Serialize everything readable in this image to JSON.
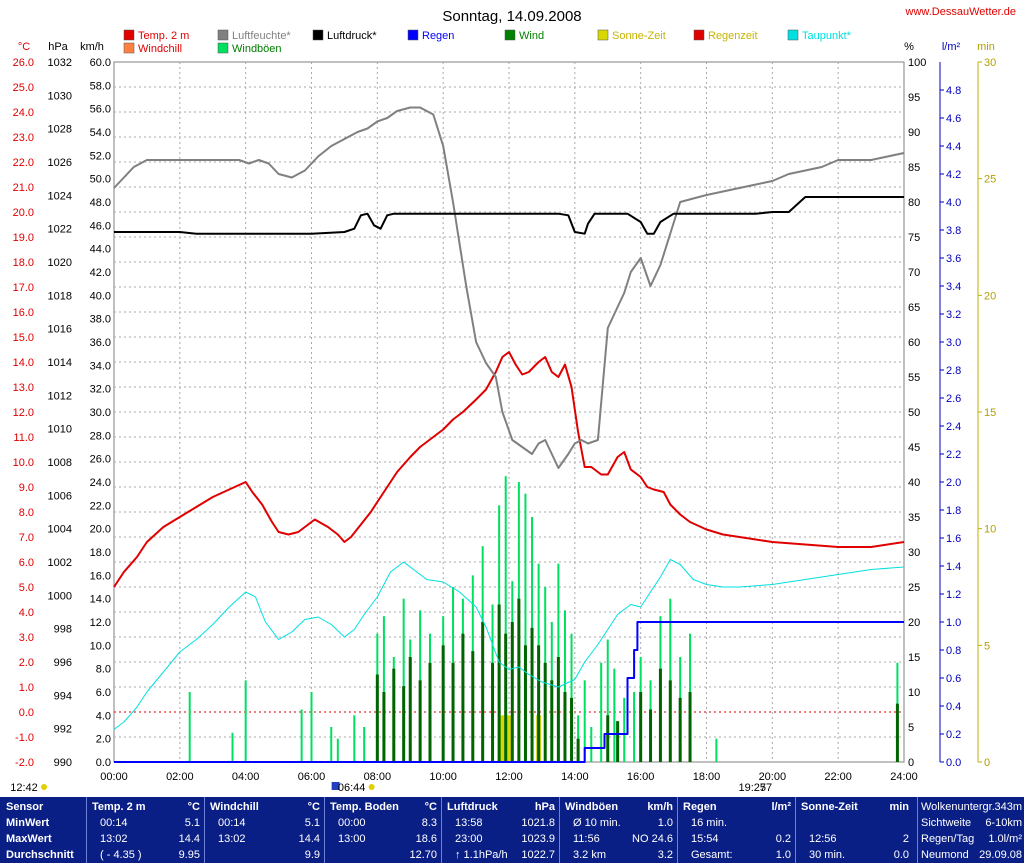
{
  "site": "www.DessauWetter.de",
  "chart_data": {
    "type": "line",
    "title": "Sonntag, 14.09.2008",
    "axes": {
      "temp": {
        "unit": "°C",
        "min": -2.0,
        "max": 26.0,
        "ticks": [
          "-2.0",
          "-1.0",
          "0.0",
          "1.0",
          "2.0",
          "3.0",
          "4.0",
          "5.0",
          "6.0",
          "7.0",
          "8.0",
          "9.0",
          "10.0",
          "11.0",
          "12.0",
          "13.0",
          "14.0",
          "15.0",
          "16.0",
          "17.0",
          "18.0",
          "19.0",
          "20.0",
          "21.0",
          "22.0",
          "23.0",
          "24.0",
          "25.0",
          "26.0"
        ]
      },
      "pressure": {
        "unit": "hPa",
        "min": 990,
        "max": 1032,
        "ticks": [
          "990",
          "992",
          "994",
          "996",
          "998",
          "1000",
          "1002",
          "1004",
          "1006",
          "1008",
          "1010",
          "1012",
          "1014",
          "1016",
          "1018",
          "1020",
          "1022",
          "1024",
          "1026",
          "1028",
          "1030",
          "1032"
        ]
      },
      "wind": {
        "unit": "km/h",
        "min": 0.0,
        "max": 60.0,
        "ticks": [
          "0.0",
          "2.0",
          "4.0",
          "6.0",
          "8.0",
          "10.0",
          "12.0",
          "14.0",
          "16.0",
          "18.0",
          "20.0",
          "22.0",
          "24.0",
          "26.0",
          "28.0",
          "30.0",
          "32.0",
          "34.0",
          "36.0",
          "38.0",
          "40.0",
          "42.0",
          "44.0",
          "46.0",
          "48.0",
          "50.0",
          "52.0",
          "54.0",
          "56.0",
          "58.0",
          "60.0"
        ]
      },
      "humidity": {
        "unit": "%",
        "min": 0,
        "max": 100,
        "ticks": [
          "0",
          "5",
          "10",
          "15",
          "20",
          "25",
          "30",
          "35",
          "40",
          "45",
          "50",
          "55",
          "60",
          "65",
          "70",
          "75",
          "80",
          "85",
          "90",
          "95",
          "100"
        ]
      },
      "rain": {
        "unit": "l/m²",
        "min": 0.0,
        "max": 5.0,
        "ticks": [
          "0.0",
          "0.2",
          "0.4",
          "0.6",
          "0.8",
          "1.0",
          "1.2",
          "1.4",
          "1.6",
          "1.8",
          "2.0",
          "2.2",
          "2.4",
          "2.6",
          "2.8",
          "3.0",
          "3.2",
          "3.4",
          "3.6",
          "3.8",
          "4.0",
          "4.2",
          "4.4",
          "4.6",
          "4.8"
        ]
      },
      "minutes": {
        "unit": "min",
        "min": 0,
        "max": 30,
        "ticks": [
          "0",
          "5",
          "10",
          "15",
          "20",
          "25",
          "30"
        ]
      },
      "x": {
        "min": 0,
        "max": 24,
        "ticks": [
          "00:00",
          "02:00",
          "04:00",
          "06:00",
          "08:00",
          "10:00",
          "12:00",
          "14:00",
          "16:00",
          "18:00",
          "20:00",
          "22:00",
          "24:00"
        ]
      }
    },
    "legend": [
      {
        "name": "Temp. 2 m",
        "color": "#e00000"
      },
      {
        "name": "Luftfeuchte*",
        "color": "#808080"
      },
      {
        "name": "Luftdruck*",
        "color": "#000000"
      },
      {
        "name": "Regen",
        "color": "#0000ff"
      },
      {
        "name": "Wind",
        "color": "#008000"
      },
      {
        "name": "Sonne-Zeit",
        "color": "#d8d800"
      },
      {
        "name": "Regenzeit",
        "color": "#e00000"
      },
      {
        "name": "Taupunkt*",
        "color": "#00e0e0"
      },
      {
        "name": "Windchill",
        "color": "#ff8040"
      },
      {
        "name": "Windböen",
        "color": "#00e060"
      }
    ],
    "series": [
      {
        "name": "Temp. 2 m",
        "axis": "temp",
        "color": "#e00000",
        "x": [
          0,
          0.3,
          0.7,
          1.0,
          1.5,
          2.0,
          2.5,
          3.0,
          3.5,
          4.0,
          4.2,
          4.5,
          4.8,
          5.0,
          5.3,
          5.6,
          5.9,
          6.1,
          6.5,
          6.8,
          7.0,
          7.2,
          7.5,
          7.8,
          8.0,
          8.3,
          8.6,
          9.0,
          9.3,
          9.6,
          10.0,
          10.3,
          10.6,
          11.0,
          11.3,
          11.6,
          11.8,
          12.0,
          12.2,
          12.4,
          12.6,
          12.9,
          13.1,
          13.3,
          13.5,
          13.7,
          13.9,
          14.1,
          14.3,
          14.5,
          14.8,
          15.0,
          15.3,
          15.5,
          15.7,
          16.0,
          16.2,
          16.4,
          16.7,
          16.9,
          17.2,
          17.5,
          18.0,
          18.5,
          19.0,
          19.5,
          20.0,
          21.0,
          22.0,
          23.0,
          23.5,
          24.0
        ],
        "y": [
          5.0,
          5.6,
          6.2,
          6.8,
          7.4,
          7.8,
          8.2,
          8.6,
          8.9,
          9.2,
          8.8,
          8.3,
          7.6,
          7.2,
          7.1,
          7.2,
          7.5,
          7.7,
          7.4,
          7.1,
          6.8,
          7.0,
          7.5,
          8.0,
          8.4,
          9.0,
          9.6,
          10.2,
          10.6,
          10.9,
          11.3,
          11.7,
          12.0,
          12.5,
          12.9,
          13.6,
          14.2,
          14.4,
          13.9,
          13.5,
          13.6,
          14.0,
          14.2,
          13.6,
          13.4,
          13.9,
          13.0,
          11.2,
          9.8,
          9.8,
          9.5,
          9.5,
          10.2,
          10.4,
          9.7,
          9.4,
          9.0,
          8.9,
          8.8,
          8.3,
          7.9,
          7.6,
          7.3,
          7.1,
          7.0,
          6.9,
          6.8,
          6.7,
          6.6,
          6.6,
          6.7,
          6.8
        ]
      },
      {
        "name": "Taupunkt*",
        "axis": "temp",
        "color": "#00e0e0",
        "x": [
          0,
          0.3,
          0.7,
          1.0,
          1.5,
          2.0,
          2.5,
          3.0,
          3.5,
          4.0,
          4.3,
          4.6,
          5.0,
          5.4,
          5.8,
          6.2,
          6.6,
          7.0,
          7.3,
          7.6,
          8.0,
          8.4,
          8.8,
          9.1,
          9.5,
          10.0,
          10.5,
          11.0,
          11.3,
          11.7,
          12.0,
          12.3,
          12.6,
          13.0,
          13.5,
          14.0,
          14.3,
          14.7,
          15.0,
          15.3,
          15.7,
          16.0,
          16.3,
          16.6,
          16.9,
          17.2,
          17.6,
          18.0,
          18.5,
          19.0,
          20.0,
          21.0,
          22.0,
          23.0,
          24.0
        ],
        "y": [
          -0.7,
          -0.4,
          0.2,
          0.8,
          1.6,
          2.4,
          2.9,
          3.5,
          4.2,
          4.8,
          4.6,
          3.6,
          2.9,
          3.2,
          3.7,
          3.8,
          3.5,
          3.0,
          3.3,
          3.9,
          4.6,
          5.6,
          6.0,
          5.7,
          5.3,
          5.2,
          4.8,
          4.2,
          3.4,
          2.0,
          1.7,
          1.8,
          1.5,
          1.2,
          1.0,
          1.3,
          2.0,
          2.7,
          3.3,
          3.9,
          4.3,
          4.2,
          4.8,
          5.4,
          6.1,
          5.9,
          5.3,
          5.1,
          5.0,
          5.0,
          5.1,
          5.3,
          5.5,
          5.7,
          5.8
        ]
      },
      {
        "name": "Luftfeuchte*",
        "axis": "humidity",
        "color": "#808080",
        "x": [
          0,
          0.2,
          0.6,
          1.0,
          1.5,
          2.0,
          2.5,
          3.0,
          3.5,
          3.8,
          4.1,
          4.4,
          4.7,
          5.0,
          5.4,
          5.8,
          6.2,
          6.6,
          7.0,
          7.4,
          7.7,
          8.0,
          8.3,
          8.6,
          9.0,
          9.3,
          9.7,
          10.0,
          10.3,
          10.7,
          11.0,
          11.3,
          11.6,
          11.8,
          12.1,
          12.4,
          12.7,
          12.9,
          13.1,
          13.3,
          13.5,
          13.8,
          14.0,
          14.2,
          14.4,
          14.7,
          15.0,
          15.3,
          15.5,
          15.7,
          16.0,
          16.3,
          16.6,
          16.9,
          17.2,
          17.6,
          18.0,
          18.5,
          19.0,
          19.5,
          20.0,
          20.5,
          21.0,
          21.5,
          22.0,
          22.5,
          23.0,
          23.5,
          24.0
        ],
        "y": [
          82,
          83,
          85,
          86,
          86,
          86,
          86,
          86,
          86,
          86,
          85.5,
          86,
          85.5,
          84,
          83.5,
          84.5,
          86.5,
          88,
          89,
          90,
          90.5,
          91.5,
          92,
          93,
          93.5,
          93.5,
          92.5,
          88,
          80,
          68,
          60,
          57,
          55,
          50,
          46,
          45,
          44,
          45.5,
          46,
          44,
          42,
          44,
          45.5,
          46,
          45.5,
          46,
          62,
          65,
          67,
          70,
          72,
          68,
          71,
          75.5,
          80,
          80.5,
          81,
          81.5,
          82,
          82.5,
          83,
          84,
          84.5,
          85,
          86,
          86,
          86,
          86.5,
          87
        ]
      },
      {
        "name": "Luftdruck*",
        "axis": "pressure",
        "color": "#000000",
        "x": [
          0,
          1.0,
          2.0,
          2.5,
          3.0,
          4.0,
          5.0,
          6.0,
          7.0,
          7.3,
          7.5,
          7.7,
          7.9,
          8.1,
          8.3,
          8.5,
          9.0,
          10.0,
          11.0,
          12.0,
          13.0,
          13.5,
          13.8,
          14.0,
          14.3,
          14.4,
          14.6,
          14.8,
          15.0,
          15.2,
          15.4,
          15.6,
          16.0,
          16.2,
          16.4,
          16.6,
          17.0,
          18.0,
          19.0,
          19.5,
          20.0,
          20.5,
          21.0,
          22.0,
          23.0,
          24.0
        ],
        "y": [
          1021.8,
          1021.8,
          1021.8,
          1021.7,
          1021.7,
          1021.7,
          1021.7,
          1021.7,
          1021.8,
          1022.0,
          1022.8,
          1022.9,
          1022.2,
          1022.0,
          1022.8,
          1022.9,
          1022.9,
          1022.9,
          1022.9,
          1022.9,
          1022.9,
          1022.9,
          1022.8,
          1021.8,
          1021.7,
          1022.3,
          1022.9,
          1022.9,
          1022.9,
          1022.9,
          1022.9,
          1022.9,
          1022.4,
          1021.7,
          1021.7,
          1022.4,
          1022.9,
          1022.9,
          1022.9,
          1022.9,
          1023.0,
          1023.0,
          1023.9,
          1023.9,
          1023.9,
          1023.9
        ]
      },
      {
        "name": "Regen",
        "axis": "rain",
        "color": "#0000ff",
        "x": [
          0,
          14.3,
          14.3,
          14.9,
          14.9,
          15.6,
          15.6,
          15.8,
          15.8,
          15.9,
          15.9,
          24.0
        ],
        "y": [
          0,
          0,
          0.1,
          0.1,
          0.2,
          0.2,
          0.6,
          0.6,
          0.8,
          0.8,
          1.0,
          1.0
        ]
      }
    ],
    "wind_gust_bars": {
      "axis": "wind",
      "color": "#00e060",
      "x": [
        2.3,
        3.6,
        4.0,
        5.7,
        6.0,
        6.6,
        6.8,
        7.3,
        7.6,
        8.0,
        8.2,
        8.5,
        8.8,
        9.0,
        9.3,
        9.6,
        10.0,
        10.3,
        10.6,
        10.9,
        11.2,
        11.5,
        11.7,
        11.9,
        12.1,
        12.3,
        12.5,
        12.7,
        12.9,
        13.1,
        13.3,
        13.5,
        13.7,
        13.9,
        14.1,
        14.3,
        14.5,
        14.8,
        15.0,
        15.2,
        15.5,
        15.8,
        16.0,
        16.3,
        16.6,
        16.9,
        17.2,
        17.5,
        18.3,
        23.8
      ],
      "y": [
        6.0,
        2.5,
        7.0,
        4.5,
        6.0,
        3.0,
        2.0,
        4.0,
        3.0,
        11.0,
        12.5,
        9.0,
        14.0,
        10.5,
        13.0,
        11.0,
        12.5,
        15.0,
        14.0,
        16.0,
        18.5,
        13.5,
        22.0,
        24.5,
        15.5,
        24.0,
        23.0,
        21.0,
        17.0,
        15.0,
        12.0,
        17.0,
        13.0,
        11.0,
        4.0,
        7.0,
        3.0,
        8.5,
        10.5,
        8.0,
        5.5,
        6.0,
        9.0,
        7.0,
        12.5,
        14.0,
        9.0,
        11.0,
        2.0,
        8.5
      ]
    },
    "wind_bars": {
      "axis": "wind",
      "color": "#006400",
      "x": [
        8.0,
        8.2,
        8.5,
        8.8,
        9.0,
        9.3,
        9.6,
        10.0,
        10.3,
        10.6,
        10.9,
        11.2,
        11.5,
        11.7,
        11.9,
        12.1,
        12.3,
        12.5,
        12.7,
        12.9,
        13.1,
        13.3,
        13.5,
        13.7,
        13.9,
        14.1,
        15.0,
        15.3,
        16.0,
        16.3,
        16.6,
        16.9,
        17.2,
        17.5,
        23.8
      ],
      "y": [
        7.5,
        6.0,
        8.0,
        6.5,
        9.0,
        7.0,
        8.5,
        10.0,
        8.5,
        11.0,
        9.5,
        12.0,
        8.5,
        13.5,
        11.0,
        12.0,
        14.0,
        10.0,
        11.5,
        10.0,
        8.5,
        7.0,
        9.0,
        6.0,
        5.5,
        2.0,
        4.0,
        3.5,
        6.0,
        4.5,
        8.0,
        7.0,
        5.5,
        6.0,
        5.0
      ]
    },
    "sun_bars": {
      "axis": "minutes",
      "color": "#d8d800",
      "x": [
        11.8,
        11.9,
        12.0,
        12.9
      ],
      "y": [
        2,
        2,
        2,
        2
      ]
    },
    "sunrise": {
      "time": "06:44"
    },
    "sunset": {
      "time": "19:27"
    },
    "axis_markers": [
      {
        "label": "12:42"
      },
      {
        "label": "57"
      }
    ]
  },
  "table": {
    "row_labels": [
      "Sensor",
      "MinWert",
      "MaxWert",
      "Durchschnitt"
    ],
    "columns": [
      {
        "title": "Temp. 2 m",
        "unit": "°C",
        "cells": [
          [
            "00:14",
            "5.1"
          ],
          [
            "13:02",
            "14.4"
          ],
          [
            "( - 4.35 )",
            "9.95"
          ]
        ]
      },
      {
        "title": "Windchill",
        "unit": "°C",
        "cells": [
          [
            "00:14",
            "5.1"
          ],
          [
            "13:02",
            "14.4"
          ],
          [
            "",
            "9.9"
          ]
        ]
      },
      {
        "title": "Temp. Boden",
        "unit": "°C",
        "cells": [
          [
            "00:00",
            "8.3"
          ],
          [
            "13:00",
            "18.6"
          ],
          [
            "",
            "12.70"
          ]
        ]
      },
      {
        "title": "Luftdruck",
        "unit": "hPa",
        "cells": [
          [
            "13:58",
            "1021.8"
          ],
          [
            "23:00",
            "1023.9"
          ],
          [
            "↑ 1.1hPa/h",
            "1022.7"
          ]
        ]
      },
      {
        "title": "Windböen",
        "unit": "km/h",
        "cells": [
          [
            "Ø 10 min.",
            "1.0"
          ],
          [
            "11:56",
            "NO 24.6"
          ],
          [
            "3.2 km",
            "3.2"
          ]
        ]
      },
      {
        "title": "Regen",
        "unit": "l/m²",
        "cells": [
          [
            "16 min.",
            ""
          ],
          [
            "15:54",
            "0.2"
          ],
          [
            "Gesamt:",
            "1.0"
          ]
        ]
      },
      {
        "title": "Sonne-Zeit",
        "unit": "min",
        "cells": [
          [
            "",
            ""
          ],
          [
            "12:56",
            "2"
          ],
          [
            "30 min.",
            "0.0"
          ]
        ]
      }
    ],
    "extra": [
      [
        "Wolkenuntergr.",
        "343m"
      ],
      [
        "Sichtweite",
        "6-10km"
      ],
      [
        "Regen/Tag",
        "1.0l/m²"
      ],
      [
        "Neumond",
        "29.09.08"
      ]
    ]
  }
}
